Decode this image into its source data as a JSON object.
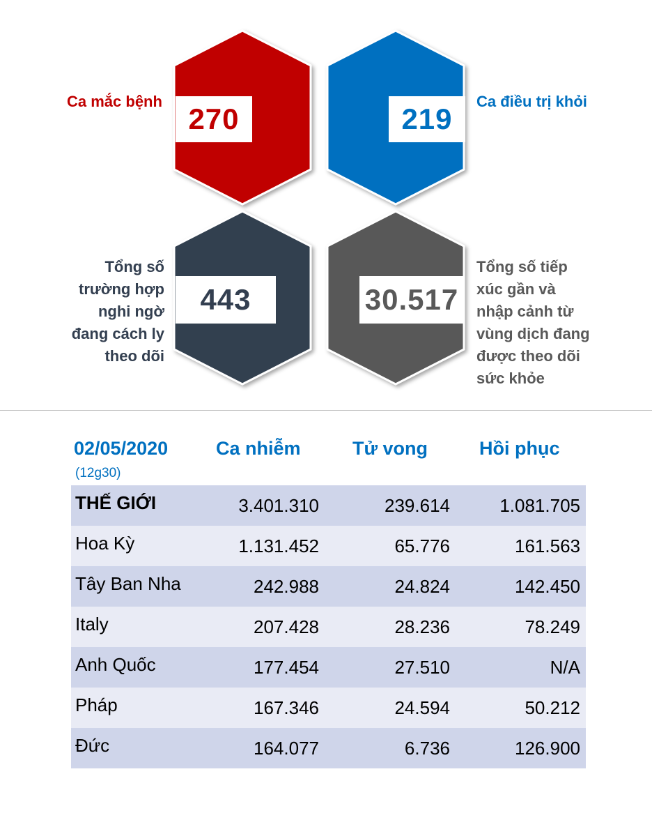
{
  "stats": {
    "infected": {
      "label": "Ca mắc bệnh",
      "value": "270",
      "color": "#c00000"
    },
    "recovered": {
      "label": "Ca điều trị khỏi",
      "value": "219",
      "color": "#0070c0"
    },
    "quarantine": {
      "label_lines": [
        "Tổng số",
        "trường hợp",
        "nghi ngờ",
        "đang cách ly",
        "theo dõi"
      ],
      "value": "443",
      "color": "#333f50"
    },
    "monitored": {
      "label_lines": [
        "Tổng số tiếp",
        "xúc gần và",
        "nhập cảnh từ",
        "vùng dịch đang",
        "được theo dõi",
        "sức khỏe"
      ],
      "value": "30.517",
      "color": "#595959"
    }
  },
  "table": {
    "date": "02/05/2020",
    "time": "(12g30)",
    "headers": [
      "Ca nhiễm",
      "Tử vong",
      "Hồi phục"
    ],
    "rows": [
      {
        "name": "THẾ GIỚI",
        "cases": "3.401.310",
        "deaths": "239.614",
        "recovered": "1.081.705"
      },
      {
        "name": "Hoa Kỳ",
        "cases": "1.131.452",
        "deaths": "65.776",
        "recovered": "161.563"
      },
      {
        "name": "Tây Ban Nha",
        "cases": "242.988",
        "deaths": "24.824",
        "recovered": "142.450"
      },
      {
        "name": "Italy",
        "cases": "207.428",
        "deaths": "28.236",
        "recovered": "78.249"
      },
      {
        "name": "Anh Quốc",
        "cases": "177.454",
        "deaths": "27.510",
        "recovered": "N/A"
      },
      {
        "name": "Pháp",
        "cases": "167.346",
        "deaths": "24.594",
        "recovered": "50.212"
      },
      {
        "name": "Đức",
        "cases": "164.077",
        "deaths": "6.736",
        "recovered": "126.900"
      }
    ]
  }
}
